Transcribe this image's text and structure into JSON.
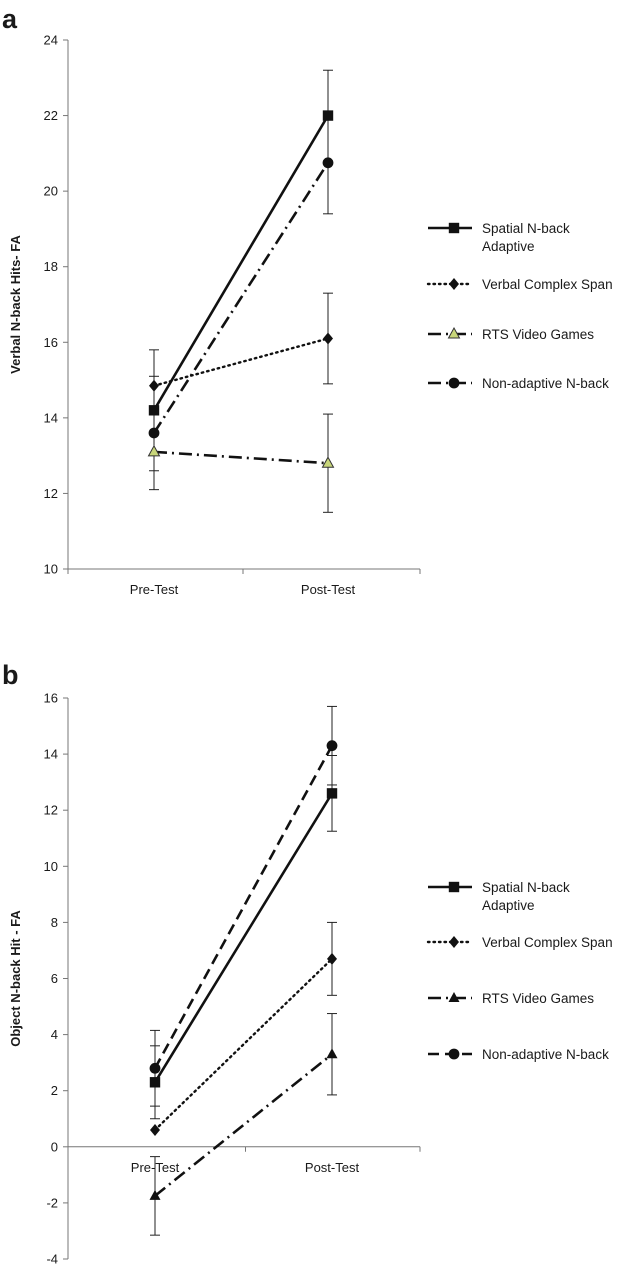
{
  "chart_data": [
    {
      "panel": "a",
      "type": "line",
      "categories": [
        "Pre-Test",
        "Post-Test"
      ],
      "ylabel": "Verbal N-back Hits- FA",
      "ylim": [
        10,
        24
      ],
      "yticks": [
        10,
        12,
        14,
        16,
        18,
        20,
        22,
        24
      ],
      "series": [
        {
          "name": "Spatial N-back Adaptive",
          "values": [
            14.2,
            22.0
          ],
          "errors": [
            1.6,
            1.2
          ],
          "marker": "square",
          "dash": "solid"
        },
        {
          "name": "Verbal Complex Span",
          "values": [
            14.85,
            16.1
          ],
          "errors": [
            0.0,
            1.2
          ],
          "marker": "diamond",
          "dash": "dotted"
        },
        {
          "name": "RTS Video Games",
          "values": [
            13.1,
            12.8
          ],
          "errors": [
            0.0,
            1.3
          ],
          "marker": "triangle-open",
          "dash": "dashdot"
        },
        {
          "name": "Non-adaptive N-back",
          "values": [
            13.6,
            20.75
          ],
          "errors": [
            1.5,
            1.35
          ],
          "marker": "circle",
          "dash": "dashdot"
        }
      ]
    },
    {
      "panel": "b",
      "type": "line",
      "categories": [
        "Pre-Test",
        "Post-Test"
      ],
      "ylabel": "Object N-back Hit - FA",
      "ylim": [
        -4,
        16
      ],
      "yticks": [
        -4,
        -2,
        0,
        2,
        4,
        6,
        8,
        10,
        12,
        14,
        16
      ],
      "series": [
        {
          "name": "Spatial N-back Adaptive",
          "values": [
            2.3,
            12.6
          ],
          "errors": [
            1.3,
            1.35
          ],
          "marker": "square",
          "dash": "solid"
        },
        {
          "name": "Verbal Complex Span",
          "values": [
            0.6,
            6.7
          ],
          "errors": [
            0.0,
            1.3
          ],
          "marker": "diamond",
          "dash": "dotted"
        },
        {
          "name": "RTS Video Games",
          "values": [
            -1.75,
            3.3
          ],
          "errors": [
            1.4,
            1.45
          ],
          "marker": "triangle",
          "dash": "dashdot"
        },
        {
          "name": "Non-adaptive N-back",
          "values": [
            2.8,
            14.3
          ],
          "errors": [
            1.35,
            1.4
          ],
          "marker": "circle",
          "dash": "dashed"
        }
      ]
    }
  ],
  "legend": {
    "items": [
      {
        "line1": "Spatial N-back",
        "line2": "Adaptive"
      },
      {
        "line1": "Verbal Complex Span",
        "line2": ""
      },
      {
        "line1": "RTS Video Games",
        "line2": ""
      },
      {
        "line1": "Non-adaptive N-back",
        "line2": ""
      }
    ]
  }
}
